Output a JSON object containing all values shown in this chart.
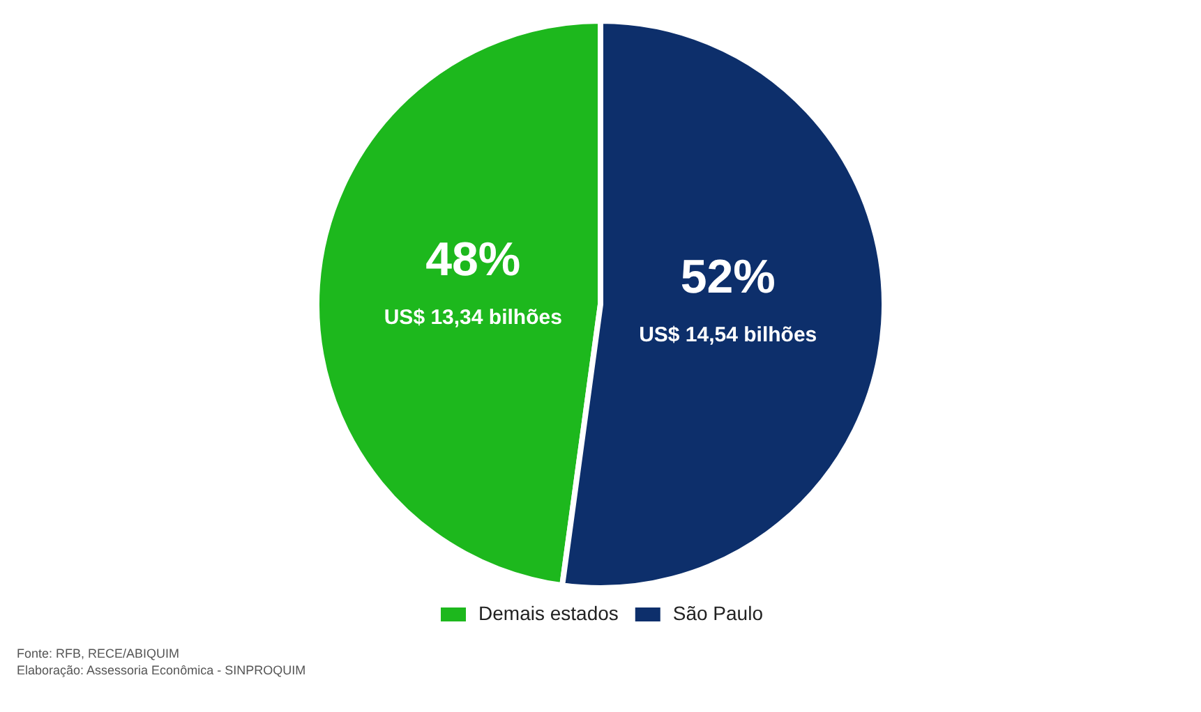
{
  "chart_data": {
    "type": "pie",
    "categories": [
      "Demais estados",
      "São Paulo"
    ],
    "values": [
      13.34,
      14.54
    ],
    "colors": [
      "#1db81d",
      "#0d2f6b"
    ],
    "value_labels": [
      "48%\nUS$ 13,34 bilhões",
      "52%\nUS$ 14,54 bilhões"
    ],
    "legend": "bottom",
    "annotations": [
      "Fonte: RFB, RECE/ABIQUIM",
      "Elaboração: Assessoria Econômica - SINPROQUIM"
    ]
  }
}
